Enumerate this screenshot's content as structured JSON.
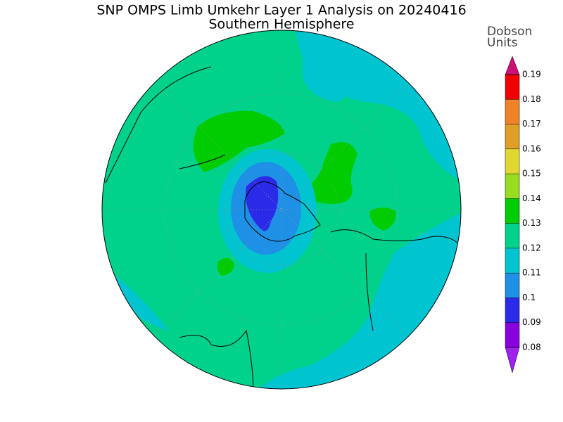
{
  "title": "SNP OMPS Limb Umkehr Layer 1 Analysis on 20240416",
  "subtitle": "Southern Hemisphere",
  "colorbar": {
    "label": [
      "Dobson",
      "Units"
    ],
    "levels": [
      0.08,
      0.09,
      0.1,
      0.11,
      0.12,
      0.13,
      0.14,
      0.15,
      0.16,
      0.17,
      0.18,
      0.19
    ],
    "colors": [
      "#a020f0",
      "#8a00dc",
      "#2a2ae8",
      "#1e90e6",
      "#00c4d0",
      "#00d28c",
      "#00cc00",
      "#99dd22",
      "#e0d830",
      "#e0a028",
      "#f08228",
      "#f00000",
      "#cc1077"
    ]
  }
}
